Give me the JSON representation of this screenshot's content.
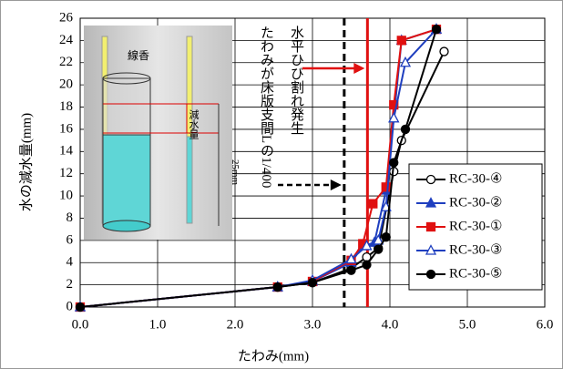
{
  "chart_data": {
    "type": "line",
    "x_label": "たわみ(mm)",
    "y_label": "水の減水量(mm)",
    "xlim": [
      0,
      6
    ],
    "ylim": [
      0,
      26
    ],
    "xticks": [
      {
        "value": 0,
        "label": "0.0"
      },
      {
        "value": 1,
        "label": "1.0"
      },
      {
        "value": 2,
        "label": "2.0"
      },
      {
        "value": 3,
        "label": "3.0"
      },
      {
        "value": 4,
        "label": "4.0"
      },
      {
        "value": 5,
        "label": "5.0"
      },
      {
        "value": 6,
        "label": "6.0"
      }
    ],
    "yticks": [
      0,
      2,
      4,
      6,
      8,
      10,
      12,
      14,
      16,
      18,
      20,
      22,
      24,
      26
    ],
    "grid": true,
    "series": [
      {
        "name": "RC-30-④",
        "color": "#000000",
        "marker": "circle",
        "marker_fill": "#ffffff",
        "x": [
          0,
          2.55,
          3.0,
          3.5,
          3.7,
          3.85,
          4.05,
          4.15,
          4.7
        ],
        "y": [
          0,
          1.8,
          2.2,
          3.5,
          4.5,
          5.3,
          12.2,
          15,
          23
        ]
      },
      {
        "name": "RC-30-②",
        "color": "#1f3fbf",
        "marker": "triangle",
        "marker_fill": "#1f3fbf",
        "x": [
          0,
          2.55,
          3.0,
          3.5,
          3.65,
          3.8,
          3.95,
          4.05,
          4.15,
          4.6
        ],
        "y": [
          0,
          1.8,
          2.3,
          4,
          5.5,
          5.8,
          10.5,
          17,
          24,
          25
        ]
      },
      {
        "name": "RC-30-①",
        "color": "#e01010",
        "marker": "square",
        "marker_fill": "#e01010",
        "x": [
          0,
          2.55,
          3.0,
          3.5,
          3.65,
          3.78,
          3.95,
          4.05,
          4.15,
          4.6
        ],
        "y": [
          0,
          1.8,
          2.3,
          4.2,
          5.7,
          9.3,
          10.8,
          18.2,
          24,
          25
        ]
      },
      {
        "name": "RC-30-③",
        "color": "#1f3fbf",
        "marker": "triangle",
        "marker_fill": "#ffffff",
        "x": [
          0,
          2.55,
          3.0,
          3.5,
          3.7,
          3.85,
          3.95,
          4.05,
          4.2,
          4.6
        ],
        "y": [
          0,
          1.8,
          2.4,
          4.3,
          5.5,
          6,
          9,
          17,
          22,
          25
        ]
      },
      {
        "name": "RC-30-⑤",
        "color": "#000000",
        "marker": "circle",
        "marker_fill": "#000000",
        "x": [
          0,
          2.55,
          3.0,
          3.5,
          3.7,
          3.85,
          3.95,
          4.05,
          4.2,
          4.6
        ],
        "y": [
          0,
          1.8,
          2.2,
          3.3,
          3.8,
          5.2,
          6.3,
          13,
          16,
          25
        ]
      }
    ],
    "reference_lines": [
      {
        "x": 3.41,
        "color": "#000000",
        "style": "dashed"
      },
      {
        "x": 3.71,
        "color": "#e01010",
        "style": "solid"
      }
    ],
    "annotations": [
      "たわみが床版支間Lの1/400",
      "水平ひび割れ発生"
    ],
    "inset_labels": [
      "線香",
      "減水量",
      "25mm"
    ]
  }
}
